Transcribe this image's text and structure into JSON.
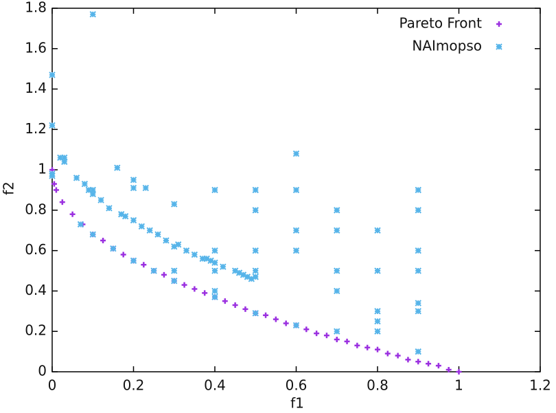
{
  "chart_data": {
    "type": "scatter",
    "xlabel": "f1",
    "ylabel": "f2",
    "xlim": [
      0,
      1.2
    ],
    "ylim": [
      0,
      1.8
    ],
    "xticks": [
      0,
      0.2,
      0.4,
      0.6,
      0.8,
      1,
      1.2
    ],
    "yticks": [
      0,
      0.2,
      0.4,
      0.6,
      0.8,
      1,
      1.2,
      1.4,
      1.6,
      1.8
    ],
    "legend": "top-right",
    "series": [
      {
        "name": "Pareto Front",
        "color": "#9b30e0",
        "marker": "plus",
        "x": [
          0,
          0.005,
          0.01,
          0.025,
          0.05,
          0.075,
          0.1,
          0.125,
          0.15,
          0.175,
          0.2,
          0.225,
          0.25,
          0.275,
          0.3,
          0.325,
          0.35,
          0.375,
          0.4,
          0.425,
          0.45,
          0.475,
          0.5,
          0.525,
          0.55,
          0.575,
          0.6,
          0.625,
          0.65,
          0.675,
          0.7,
          0.725,
          0.75,
          0.775,
          0.8,
          0.825,
          0.85,
          0.875,
          0.9,
          0.925,
          0.95,
          0.975,
          1
        ],
        "values": [
          1,
          0.93,
          0.9,
          0.84,
          0.78,
          0.73,
          0.68,
          0.65,
          0.61,
          0.58,
          0.55,
          0.53,
          0.5,
          0.48,
          0.45,
          0.43,
          0.41,
          0.39,
          0.37,
          0.35,
          0.33,
          0.31,
          0.29,
          0.28,
          0.26,
          0.24,
          0.23,
          0.21,
          0.19,
          0.18,
          0.16,
          0.15,
          0.13,
          0.12,
          0.11,
          0.09,
          0.08,
          0.06,
          0.05,
          0.04,
          0.03,
          0.01,
          0
        ]
      },
      {
        "name": "NAImopso",
        "color": "#56b4e9",
        "marker": "star",
        "x": [
          0,
          0,
          0,
          0,
          0.1,
          0.02,
          0.03,
          0.03,
          0.06,
          0.08,
          0.09,
          0.1,
          0.1,
          0.12,
          0.14,
          0.16,
          0.17,
          0.18,
          0.2,
          0.2,
          0.2,
          0.22,
          0.23,
          0.24,
          0.26,
          0.28,
          0.3,
          0.3,
          0.31,
          0.3,
          0.33,
          0.35,
          0.37,
          0.38,
          0.39,
          0.4,
          0.4,
          0.4,
          0.4,
          0.4,
          0.42,
          0.45,
          0.46,
          0.47,
          0.48,
          0.49,
          0.5,
          0.5,
          0.5,
          0.5,
          0.5,
          0.6,
          0.6,
          0.6,
          0.6,
          0.7,
          0.7,
          0.7,
          0.7,
          0.7,
          0.8,
          0.8,
          0.8,
          0.8,
          0.8,
          0.9,
          0.9,
          0.9,
          0.9,
          0.9,
          0.9,
          0.9,
          0.07,
          0.1,
          0.15,
          0.2,
          0.25,
          0.3,
          0.4,
          0.5,
          0.6
        ],
        "values": [
          1.47,
          1.22,
          0.98,
          0.97,
          1.77,
          1.06,
          1.06,
          1.04,
          0.96,
          0.93,
          0.9,
          0.9,
          0.88,
          0.85,
          0.81,
          1.01,
          0.78,
          0.77,
          0.95,
          0.91,
          0.75,
          0.72,
          0.91,
          0.7,
          0.68,
          0.65,
          0.83,
          0.62,
          0.63,
          0.5,
          0.6,
          0.58,
          0.56,
          0.56,
          0.55,
          0.9,
          0.6,
          0.54,
          0.5,
          0.4,
          0.52,
          0.5,
          0.49,
          0.48,
          0.47,
          0.46,
          0.47,
          0.9,
          0.8,
          0.6,
          0.5,
          1.08,
          0.9,
          0.7,
          0.6,
          0.8,
          0.7,
          0.5,
          0.4,
          0.2,
          0.7,
          0.5,
          0.3,
          0.25,
          0.2,
          0.9,
          0.8,
          0.6,
          0.5,
          0.34,
          0.3,
          0.1,
          0.73,
          0.68,
          0.61,
          0.55,
          0.5,
          0.45,
          0.37,
          0.29,
          0.23
        ]
      }
    ]
  }
}
